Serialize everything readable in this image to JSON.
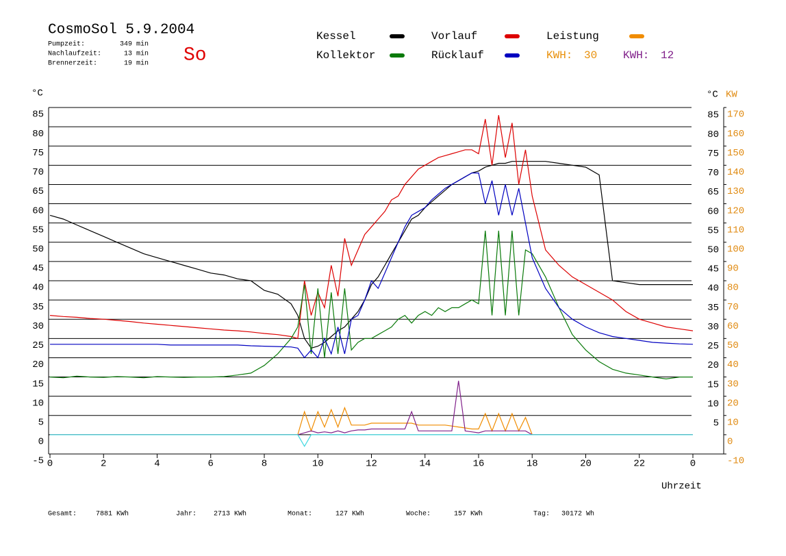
{
  "chart_data": {
    "type": "line",
    "title": "CosmoSol 5.9.2004",
    "day": "So",
    "info": [
      {
        "label": "Pumpzeit:",
        "value": "349 min"
      },
      {
        "label": "Nachlaufzeit:",
        "value": "13 min"
      },
      {
        "label": "Brennerzeit:",
        "value": "19 min"
      }
    ],
    "kwh": [
      {
        "label": "KWH:",
        "value": 30,
        "color": "#e8900a"
      },
      {
        "label": "KWH:",
        "value": 12,
        "color": "#80208a"
      }
    ],
    "ylabel": "°C",
    "y2label_c": "°C",
    "y2label": "KW",
    "xlabel": "Uhrzeit",
    "xlim": [
      0,
      24
    ],
    "xticks": [
      0,
      2,
      4,
      6,
      8,
      10,
      12,
      14,
      16,
      18,
      20,
      22,
      {
        "value": 24,
        "label": "0"
      }
    ],
    "ylim": [
      -5,
      85
    ],
    "yticks": [
      -5,
      0,
      5,
      10,
      15,
      20,
      25,
      30,
      35,
      40,
      45,
      50,
      55,
      60,
      65,
      70,
      75,
      80,
      85
    ],
    "y2lim": [
      -10,
      170
    ],
    "y2ticks": [
      -10,
      0,
      10,
      20,
      30,
      40,
      50,
      60,
      70,
      80,
      90,
      100,
      110,
      120,
      130,
      140,
      150,
      160,
      170
    ],
    "grid": true,
    "x": [
      0,
      0.5,
      1,
      1.5,
      2,
      2.5,
      3,
      3.5,
      4,
      4.5,
      5,
      5.5,
      6,
      6.5,
      7,
      7.5,
      8,
      8.5,
      9,
      9.25,
      9.5,
      9.75,
      10,
      10.25,
      10.5,
      10.75,
      11,
      11.25,
      11.5,
      11.75,
      12,
      12.25,
      12.5,
      12.75,
      13,
      13.25,
      13.5,
      13.75,
      14,
      14.25,
      14.5,
      14.75,
      15,
      15.25,
      15.5,
      15.75,
      16,
      16.25,
      16.5,
      16.75,
      17,
      17.25,
      17.5,
      17.75,
      18,
      18.5,
      19,
      19.5,
      20,
      20.5,
      21,
      21.5,
      22,
      22.5,
      23,
      23.5,
      24
    ],
    "series": [
      {
        "name": "Kessel",
        "color": "#000000",
        "values": [
          57,
          56,
          54.5,
          53,
          51.5,
          50,
          48.5,
          47,
          46,
          45,
          44,
          43,
          42,
          41.5,
          40.5,
          40,
          37.5,
          36.5,
          34,
          31,
          25,
          22.5,
          23,
          24,
          25.5,
          27,
          28,
          30,
          32,
          35,
          39,
          41,
          44,
          47,
          50,
          53,
          56,
          57,
          59,
          60.5,
          62,
          63.5,
          65,
          66,
          67,
          68,
          68.5,
          69.5,
          70,
          70.5,
          70.5,
          71,
          71,
          71,
          71,
          71,
          70.5,
          70,
          69.5,
          67.5,
          40,
          39.5,
          39,
          39,
          39,
          39,
          39
        ]
      },
      {
        "name": "Vorlauf",
        "color": "#dd0000",
        "values": [
          31,
          30.7,
          30.5,
          30.2,
          30,
          29.7,
          29.4,
          29,
          28.7,
          28.4,
          28.1,
          27.8,
          27.5,
          27.2,
          27,
          26.7,
          26.3,
          26,
          25.5,
          25,
          40,
          31,
          37,
          33,
          44,
          36,
          51,
          44,
          48,
          52,
          54,
          56,
          58,
          61,
          62,
          65,
          67,
          69,
          70,
          71,
          72,
          72.5,
          73,
          73.5,
          74,
          74,
          73,
          82,
          70,
          83,
          72,
          81,
          65,
          74,
          62,
          48,
          44,
          41,
          39,
          37,
          35,
          32,
          30,
          29,
          28,
          27.5,
          27
        ]
      },
      {
        "name": "Leistung",
        "color": "#f08c00",
        "axis": "y2",
        "values": [
          0,
          0,
          0,
          0,
          0,
          0,
          0,
          0,
          0,
          0,
          0,
          0,
          0,
          0,
          0,
          0,
          0,
          0,
          0,
          0,
          12,
          2,
          12,
          4,
          13,
          4,
          14,
          5,
          5,
          5,
          6,
          6,
          6,
          6,
          6,
          6,
          6,
          5,
          5,
          5,
          5,
          5,
          4.5,
          4,
          3.5,
          3,
          3,
          11,
          2,
          11,
          2,
          11,
          2,
          9,
          0,
          0,
          0,
          0,
          0,
          0,
          0,
          0,
          0,
          0,
          0,
          0,
          0
        ]
      },
      {
        "name": "Kollektor",
        "color": "#0a7a0a",
        "values": [
          15,
          14.8,
          15.2,
          15,
          14.9,
          15.1,
          15,
          14.8,
          15.1,
          15,
          14.9,
          15,
          15,
          15.1,
          15.5,
          16,
          18,
          21,
          25,
          28,
          39,
          21,
          38,
          20,
          37,
          21,
          38,
          22,
          24,
          25,
          25,
          26,
          27,
          28,
          30,
          31,
          29,
          31,
          32,
          31,
          33,
          32,
          33,
          33,
          34,
          35,
          34,
          53,
          31,
          53,
          31,
          53,
          31,
          48,
          47,
          41,
          33,
          26,
          22,
          19,
          17,
          16,
          15.5,
          15,
          14.5,
          15,
          15
        ]
      },
      {
        "name": "Rücklauf",
        "color": "#0000c0",
        "values": [
          23.5,
          23.5,
          23.5,
          23.5,
          23.5,
          23.5,
          23.5,
          23.5,
          23.5,
          23.3,
          23.3,
          23.3,
          23.3,
          23.3,
          23.3,
          23.1,
          23,
          22.9,
          22.8,
          22.5,
          20,
          22,
          20,
          25,
          21,
          28,
          21,
          30,
          31,
          35,
          40,
          38,
          42,
          46,
          50,
          54,
          57,
          58,
          59,
          61,
          62.5,
          64,
          65,
          66,
          67,
          68,
          68,
          60,
          66,
          57,
          65,
          57,
          64,
          55,
          46,
          38,
          33,
          30,
          28,
          26.5,
          25.5,
          25,
          24.5,
          24,
          23.8,
          23.6,
          23.5
        ]
      },
      {
        "color": "#80208a",
        "axis": "y2",
        "values": [
          0,
          0,
          0,
          0,
          0,
          0,
          0,
          0,
          0,
          0,
          0,
          0,
          0,
          0,
          0,
          0,
          0,
          0,
          0,
          0,
          1,
          2,
          1,
          1.5,
          1,
          2,
          1,
          2,
          2.5,
          2.5,
          3,
          3,
          3,
          3,
          3,
          3,
          12,
          2,
          2,
          2,
          2,
          2,
          2,
          28,
          2,
          1.5,
          1,
          2,
          2,
          2,
          2,
          2,
          2,
          2,
          0,
          0,
          0,
          0,
          0,
          0,
          0,
          0,
          0,
          0,
          0,
          0,
          0
        ]
      },
      {
        "color": "#40d8e0",
        "values": [
          0,
          0,
          0,
          0,
          0,
          0,
          0,
          0,
          0,
          0,
          0,
          0,
          0,
          0,
          0,
          0,
          0,
          0,
          0,
          0,
          -3,
          0,
          0,
          0,
          0,
          0,
          0,
          0,
          0,
          0,
          0,
          0,
          0,
          0,
          0,
          0,
          0,
          0,
          0,
          0,
          0,
          0,
          0,
          0,
          0,
          0,
          0,
          0,
          0,
          0,
          0,
          0,
          0,
          0,
          0,
          0,
          0,
          0,
          0,
          0,
          0,
          0,
          0,
          0,
          0,
          0,
          0
        ]
      }
    ],
    "totals": [
      {
        "label": "Gesamt:",
        "value": "7881 KWh"
      },
      {
        "label": "Jahr:",
        "value": "2713 KWh"
      },
      {
        "label": "Monat:",
        "value": "127 KWh"
      },
      {
        "label": "Woche:",
        "value": "157 KWh"
      },
      {
        "label": "Tag:",
        "value": "30172 Wh"
      }
    ]
  }
}
